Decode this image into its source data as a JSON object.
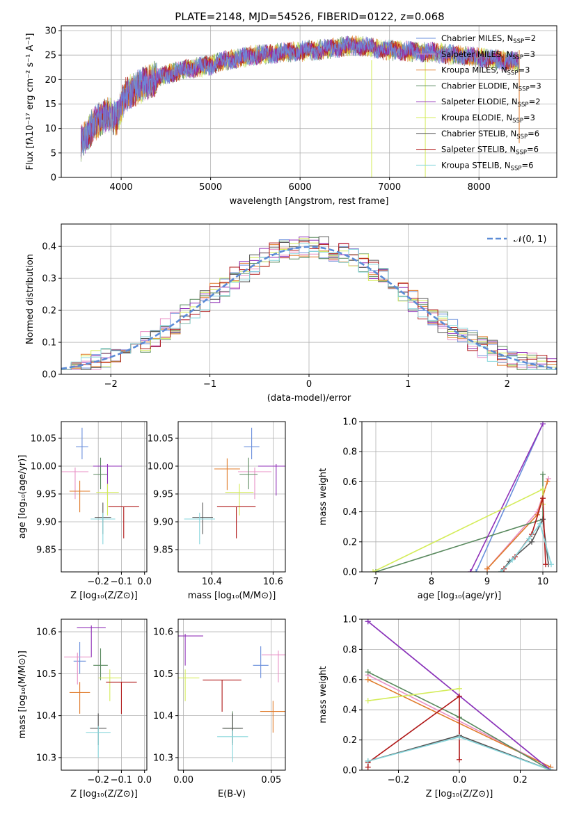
{
  "title": "PLATE=2148, MJD=54526, FIBERID=0122, z=0.068",
  "colors": [
    "#6a8fdc",
    "#e88fc6",
    "#e07b2a",
    "#5a8a5f",
    "#9030b8",
    "#d4ec5a",
    "#555555",
    "#b01818",
    "#86d6dc"
  ],
  "legend": [
    {
      "base": "Chabrier MILES, N",
      "sub": "SSP",
      "tail": "=2"
    },
    {
      "base": "Salpeter MILES, N",
      "sub": "SSP",
      "tail": "=3"
    },
    {
      "base": "Kroupa MILES, N",
      "sub": "SSP",
      "tail": "=3"
    },
    {
      "base": "Chabrier ELODIE, N",
      "sub": "SSP",
      "tail": "=3"
    },
    {
      "base": "Salpeter ELODIE, N",
      "sub": "SSP",
      "tail": "=2"
    },
    {
      "base": "Kroupa ELODIE, N",
      "sub": "SSP",
      "tail": "=3"
    },
    {
      "base": "Chabrier STELIB, N",
      "sub": "SSP",
      "tail": "=6"
    },
    {
      "base": "Salpeter STELIB, N",
      "sub": "SSP",
      "tail": "=6"
    },
    {
      "base": "Kroupa STELIB, N",
      "sub": "SSP",
      "tail": "=6"
    }
  ],
  "hist_legend": "𝒩(0, 1)",
  "chart_data": [
    {
      "id": "spectrum",
      "type": "line",
      "xlabel": "wavelength [Angstrom, rest frame]",
      "ylabel": "Flux [fλ10⁻¹⁷ erg cm⁻² s⁻¹ A⁻¹]",
      "xlim": [
        3330,
        8870
      ],
      "ylim": [
        0,
        31
      ],
      "xticks": [
        4000,
        5000,
        6000,
        7000,
        8000
      ],
      "yticks": [
        0,
        5,
        10,
        15,
        20,
        25,
        30
      ],
      "continuum": [
        [
          3550,
          7
        ],
        [
          3700,
          11
        ],
        [
          3850,
          13
        ],
        [
          3950,
          12
        ],
        [
          4050,
          17
        ],
        [
          4250,
          19
        ],
        [
          4500,
          21
        ],
        [
          4700,
          22
        ],
        [
          5000,
          23
        ],
        [
          5200,
          24
        ],
        [
          5500,
          25
        ],
        [
          5800,
          25.5
        ],
        [
          6200,
          26
        ],
        [
          6600,
          27
        ],
        [
          7000,
          26
        ],
        [
          7500,
          25.5
        ],
        [
          8000,
          24.5
        ],
        [
          8450,
          23.5
        ]
      ],
      "vlines": [
        3890,
        6800,
        7400,
        8450
      ]
    },
    {
      "id": "residuals",
      "type": "histogram",
      "xlabel": "(data-model)/error",
      "ylabel": "Normed distribution",
      "xlim": [
        -2.5,
        2.5
      ],
      "ylim": [
        0,
        0.47
      ],
      "xticks": [
        -2,
        -1,
        0,
        1,
        2
      ],
      "yticks": [
        0.0,
        0.1,
        0.2,
        0.3,
        0.4
      ]
    },
    {
      "id": "age-vs-z",
      "type": "scatter",
      "xlabel": "Z [log₁₀(Z/Z⊙)]",
      "ylabel": "age  [log₁₀(age/yr)]",
      "xlim": [
        -0.36,
        0.01
      ],
      "ylim": [
        9.81,
        10.08
      ],
      "xticks": [
        -0.2,
        -0.1,
        0.0
      ],
      "yticks": [
        9.85,
        9.9,
        9.95,
        10.0,
        10.05
      ],
      "points": [
        [
          -0.27,
          10.035
        ],
        [
          -0.3,
          9.99
        ],
        [
          -0.28,
          9.955
        ],
        [
          -0.19,
          9.985
        ],
        [
          -0.16,
          10.0
        ],
        [
          -0.16,
          9.953
        ],
        [
          -0.18,
          9.908
        ],
        [
          -0.09,
          9.927
        ],
        [
          -0.18,
          9.905
        ]
      ]
    },
    {
      "id": "age-vs-mass",
      "type": "scatter",
      "xlabel": "mass [log₁₀(M/M⊙)]",
      "ylabel": "",
      "xlim": [
        10.29,
        10.64
      ],
      "ylim": [
        9.81,
        10.08
      ],
      "xticks": [
        10.4,
        10.6
      ],
      "yticks": [
        9.85,
        9.9,
        9.95,
        10.0,
        10.05
      ],
      "points": [
        [
          10.53,
          10.035
        ],
        [
          10.54,
          9.99
        ],
        [
          10.45,
          9.995
        ],
        [
          10.52,
          9.985
        ],
        [
          10.61,
          10.0
        ],
        [
          10.49,
          9.953
        ],
        [
          10.37,
          9.908
        ],
        [
          10.48,
          9.927
        ],
        [
          10.36,
          9.905
        ]
      ]
    },
    {
      "id": "mass-weight-vs-age",
      "type": "line",
      "xlabel": "age  [log₁₀(age/yr)]",
      "ylabel": "mass weight",
      "xlim": [
        6.75,
        10.25
      ],
      "ylim": [
        0,
        1
      ],
      "xticks": [
        7,
        8,
        9,
        10
      ],
      "yticks": [
        0.0,
        0.2,
        0.4,
        0.6,
        0.8,
        1.0
      ],
      "series": [
        {
          "c": 0,
          "pts": [
            [
              8.8,
              0
            ],
            [
              10.0,
              0.985
            ]
          ]
        },
        {
          "c": 1,
          "pts": [
            [
              9.0,
              0.02
            ],
            [
              9.9,
              0.4
            ],
            [
              10.1,
              0.62
            ]
          ]
        },
        {
          "c": 2,
          "pts": [
            [
              9.0,
              0.02
            ],
            [
              9.9,
              0.38
            ],
            [
              10.08,
              0.6
            ]
          ]
        },
        {
          "c": 3,
          "pts": [
            [
              7.0,
              0.0
            ],
            [
              10.0,
              0.35
            ],
            [
              10.0,
              0.65
            ]
          ]
        },
        {
          "c": 4,
          "pts": [
            [
              8.7,
              0
            ],
            [
              10.0,
              0.985
            ]
          ]
        },
        {
          "c": 5,
          "pts": [
            [
              6.95,
              0.0
            ],
            [
              10.0,
              0.55
            ],
            [
              10.0,
              0.45
            ]
          ]
        },
        {
          "c": 6,
          "pts": [
            [
              9.25,
              0.0
            ],
            [
              9.4,
              0.07
            ],
            [
              9.8,
              0.2
            ],
            [
              10.0,
              0.35
            ],
            [
              10.1,
              0.05
            ]
          ]
        },
        {
          "c": 7,
          "pts": [
            [
              9.3,
              0.02
            ],
            [
              9.5,
              0.1
            ],
            [
              9.8,
              0.25
            ],
            [
              10.0,
              0.49
            ],
            [
              10.05,
              0.05
            ]
          ]
        },
        {
          "c": 8,
          "pts": [
            [
              9.25,
              0.0
            ],
            [
              9.45,
              0.08
            ],
            [
              9.75,
              0.22
            ],
            [
              9.95,
              0.32
            ],
            [
              10.15,
              0.05
            ]
          ]
        }
      ]
    },
    {
      "id": "mass-vs-z",
      "type": "scatter",
      "xlabel": "Z [log₁₀(Z/Z⊙)]",
      "ylabel": "mass [log₁₀(M/M⊙)]",
      "xlim": [
        -0.36,
        0.01
      ],
      "ylim": [
        10.27,
        10.63
      ],
      "xticks": [
        -0.2,
        -0.1,
        0.0
      ],
      "yticks": [
        10.3,
        10.4,
        10.5,
        10.6
      ],
      "points": [
        [
          -0.28,
          10.53
        ],
        [
          -0.29,
          10.54
        ],
        [
          -0.28,
          10.455
        ],
        [
          -0.19,
          10.52
        ],
        [
          -0.23,
          10.61
        ],
        [
          -0.15,
          10.49
        ],
        [
          -0.2,
          10.37
        ],
        [
          -0.1,
          10.48
        ],
        [
          -0.2,
          10.36
        ]
      ]
    },
    {
      "id": "mass-vs-ebv",
      "type": "scatter",
      "xlabel": "E(B-V)",
      "ylabel": "",
      "xlim": [
        -0.003,
        0.058
      ],
      "ylim": [
        10.27,
        10.63
      ],
      "xticks": [
        0.0,
        0.05
      ],
      "yticks": [
        10.3,
        10.4,
        10.5,
        10.6
      ],
      "points": [
        [
          0.044,
          10.52
        ],
        [
          0.054,
          10.545
        ],
        [
          0.051,
          10.41
        ],
        [
          0.028,
          10.37
        ],
        [
          0.001,
          10.59
        ],
        [
          0.001,
          10.49
        ],
        [
          0.028,
          10.37
        ],
        [
          0.022,
          10.485
        ],
        [
          0.028,
          10.35
        ]
      ]
    },
    {
      "id": "mass-weight-vs-z",
      "type": "line",
      "xlabel": "Z [log₁₀(Z/Z⊙)]",
      "ylabel": "mass weight",
      "xlim": [
        -0.32,
        0.32
      ],
      "ylim": [
        0,
        1
      ],
      "xticks": [
        -0.2,
        0.0,
        0.2
      ],
      "yticks": [
        0.0,
        0.2,
        0.4,
        0.6,
        0.8,
        1.0
      ],
      "series": [
        {
          "c": 0,
          "pts": [
            [
              -0.3,
              0.985
            ],
            [
              0.3,
              0.0
            ]
          ]
        },
        {
          "c": 1,
          "pts": [
            [
              -0.3,
              0.63
            ],
            [
              0.3,
              0.02
            ]
          ]
        },
        {
          "c": 2,
          "pts": [
            [
              -0.3,
              0.6
            ],
            [
              0.3,
              0.02
            ]
          ]
        },
        {
          "c": 3,
          "pts": [
            [
              -0.3,
              0.65
            ],
            [
              0.0,
              0.35
            ],
            [
              0.3,
              0.0
            ]
          ]
        },
        {
          "c": 4,
          "pts": [
            [
              -0.3,
              0.985
            ],
            [
              0.3,
              0.0
            ]
          ]
        },
        {
          "c": 5,
          "pts": [
            [
              -0.3,
              0.46
            ],
            [
              0.0,
              0.54
            ]
          ]
        },
        {
          "c": 6,
          "pts": [
            [
              -0.3,
              0.06
            ],
            [
              0.0,
              0.23
            ],
            [
              0.3,
              0.0
            ]
          ]
        },
        {
          "c": 7,
          "pts": [
            [
              -0.3,
              0.02
            ],
            [
              -0.3,
              0.05
            ],
            [
              0.0,
              0.49
            ],
            [
              0.0,
              0.07
            ]
          ]
        },
        {
          "c": 8,
          "pts": [
            [
              -0.3,
              0.06
            ],
            [
              0.0,
              0.22
            ],
            [
              0.3,
              0.0
            ]
          ]
        }
      ]
    }
  ]
}
